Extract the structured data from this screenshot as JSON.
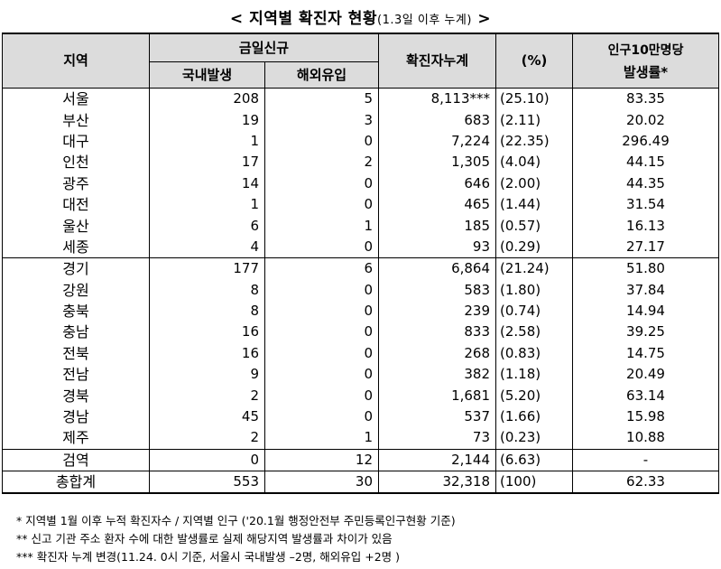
{
  "title": {
    "main": "< 지역별 확진자 현황",
    "sub": "(1.3일 이후 누계)",
    "end": " >"
  },
  "headers": {
    "region": "지역",
    "daily_new": "금일신규",
    "domestic": "국내발생",
    "overseas": "해외유입",
    "cumulative": "확진자누계",
    "percent": "(%)",
    "rate_line1": "인구10만명당",
    "rate_line2": "발생률*"
  },
  "rows": [
    {
      "region": "서울",
      "domestic": "208",
      "overseas": "5",
      "cumulative": "8,113***",
      "percent": "(25.10)",
      "rate": "83.35"
    },
    {
      "region": "부산",
      "domestic": "19",
      "overseas": "3",
      "cumulative": "683",
      "percent": "(2.11)",
      "rate": "20.02"
    },
    {
      "region": "대구",
      "domestic": "1",
      "overseas": "0",
      "cumulative": "7,224",
      "percent": "(22.35)",
      "rate": "296.49"
    },
    {
      "region": "인천",
      "domestic": "17",
      "overseas": "2",
      "cumulative": "1,305",
      "percent": "(4.04)",
      "rate": "44.15"
    },
    {
      "region": "광주",
      "domestic": "14",
      "overseas": "0",
      "cumulative": "646",
      "percent": "(2.00)",
      "rate": "44.35"
    },
    {
      "region": "대전",
      "domestic": "1",
      "overseas": "0",
      "cumulative": "465",
      "percent": "(1.44)",
      "rate": "31.54"
    },
    {
      "region": "울산",
      "domestic": "6",
      "overseas": "1",
      "cumulative": "185",
      "percent": "(0.57)",
      "rate": "16.13"
    },
    {
      "region": "세종",
      "domestic": "4",
      "overseas": "0",
      "cumulative": "93",
      "percent": "(0.29)",
      "rate": "27.17"
    },
    {
      "region": "경기",
      "domestic": "177",
      "overseas": "6",
      "cumulative": "6,864",
      "percent": "(21.24)",
      "rate": "51.80"
    },
    {
      "region": "강원",
      "domestic": "8",
      "overseas": "0",
      "cumulative": "583",
      "percent": "(1.80)",
      "rate": "37.84"
    },
    {
      "region": "충북",
      "domestic": "8",
      "overseas": "0",
      "cumulative": "239",
      "percent": "(0.74)",
      "rate": "14.94"
    },
    {
      "region": "충남",
      "domestic": "16",
      "overseas": "0",
      "cumulative": "833",
      "percent": "(2.58)",
      "rate": "39.25"
    },
    {
      "region": "전북",
      "domestic": "16",
      "overseas": "0",
      "cumulative": "268",
      "percent": "(0.83)",
      "rate": "14.75"
    },
    {
      "region": "전남",
      "domestic": "9",
      "overseas": "0",
      "cumulative": "382",
      "percent": "(1.18)",
      "rate": "20.49"
    },
    {
      "region": "경북",
      "domestic": "2",
      "overseas": "0",
      "cumulative": "1,681",
      "percent": "(5.20)",
      "rate": "63.14"
    },
    {
      "region": "경남",
      "domestic": "45",
      "overseas": "0",
      "cumulative": "537",
      "percent": "(1.66)",
      "rate": "15.98"
    },
    {
      "region": "제주",
      "domestic": "2",
      "overseas": "1",
      "cumulative": "73",
      "percent": "(0.23)",
      "rate": "10.88"
    },
    {
      "region": "검역",
      "domestic": "0",
      "overseas": "12",
      "cumulative": "2,144",
      "percent": "(6.63)",
      "rate": "-"
    },
    {
      "region": "총합계",
      "domestic": "553",
      "overseas": "30",
      "cumulative": "32,318",
      "percent": "(100)",
      "rate": "62.33"
    }
  ],
  "footnotes": [
    "* 지역별 1월 이후 누적 확진자수 / 지역별 인구 ('20.1월 행정안전부 주민등록인구현황 기준)",
    "** 신고 기관 주소 환자 수에 대한 발생률로 실제 해당지역 발생률과 차이가 있음",
    "*** 확진자 누계 변경(11.24. 0시 기준, 서울시 국내발생 –2명, 해외유입 +2명 )"
  ]
}
